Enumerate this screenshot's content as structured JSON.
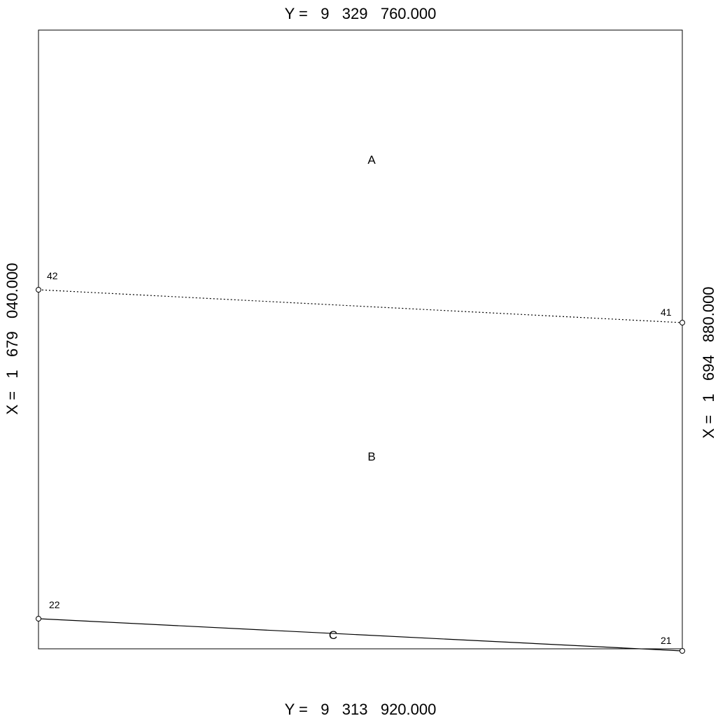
{
  "coordinates": {
    "top": "Y =   9   329   760.000",
    "bottom": "Y =   9   313   920.000",
    "left": "X =   1   679   040.000",
    "right": "X =   1   694   880.000"
  },
  "zones": {
    "a": "A",
    "b": "B",
    "c": "C"
  },
  "points": {
    "p42": "42",
    "p41": "41",
    "p22": "22",
    "p21": "21"
  },
  "lines": {
    "upper_style": "dotted",
    "lower_style": "solid"
  }
}
